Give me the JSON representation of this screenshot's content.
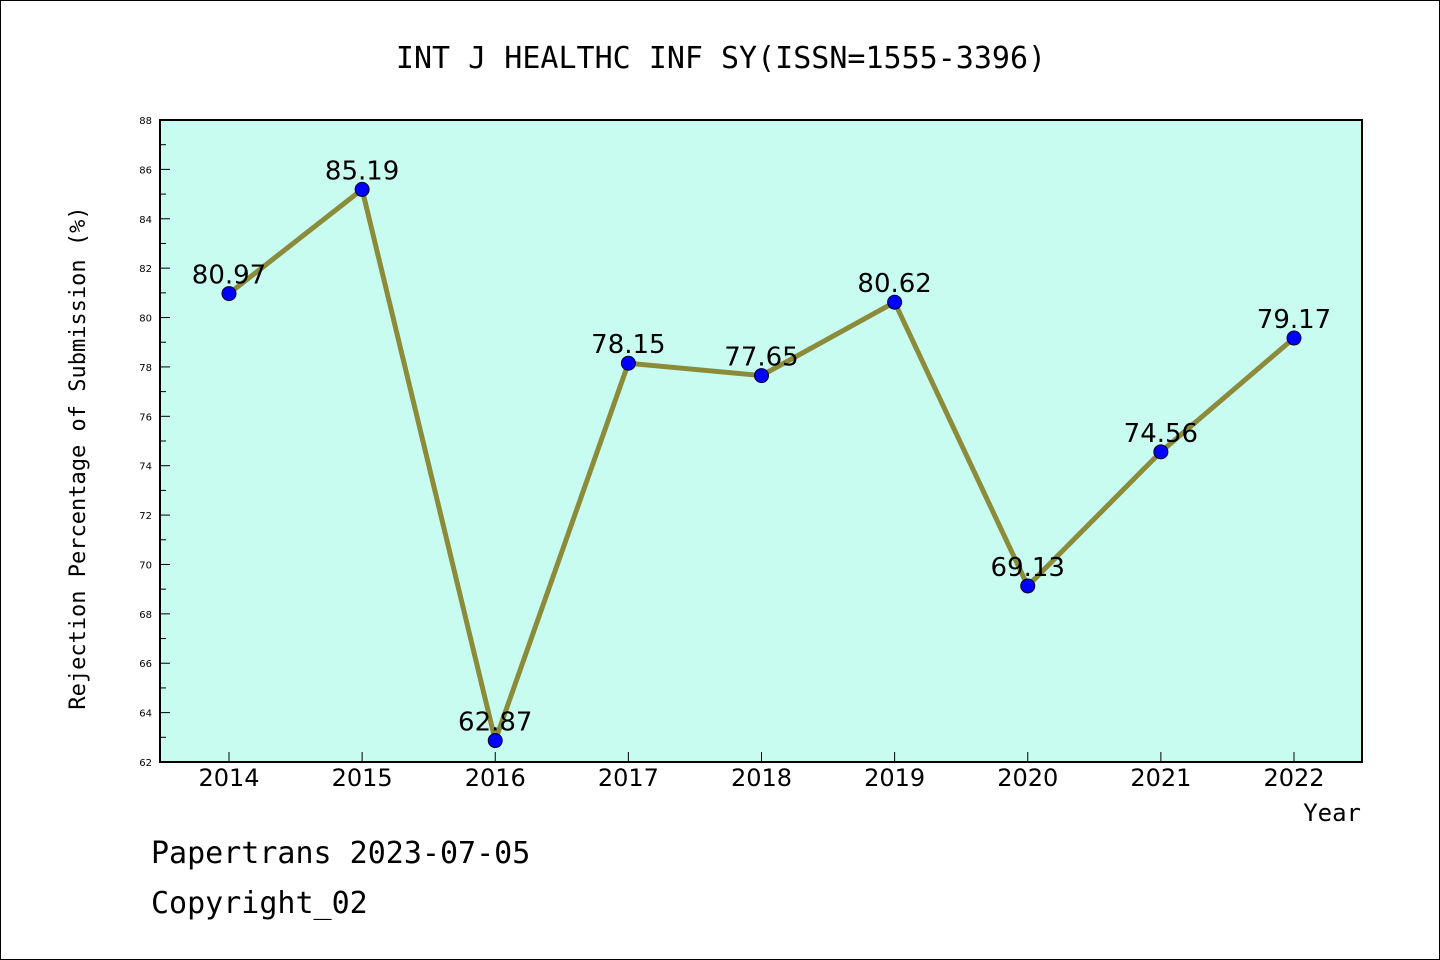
{
  "footer": {
    "line1": "Papertrans 2023-07-05",
    "line2": "Copyright_02"
  },
  "chart_data": {
    "type": "line",
    "title": "INT J HEALTHC INF SY(ISSN=1555-3396)",
    "xlabel": "Year",
    "ylabel": "Rejection Percentage of Submission (%)",
    "x": [
      "2014",
      "2015",
      "2016",
      "2017",
      "2018",
      "2019",
      "2020",
      "2021",
      "2022"
    ],
    "values": [
      80.97,
      85.19,
      62.87,
      78.15,
      77.65,
      80.62,
      69.13,
      74.56,
      79.17
    ],
    "data_labels": [
      "80.97",
      "85.19",
      "62.87",
      "78.15",
      "77.65",
      "80.62",
      "69.13",
      "74.56",
      "79.17"
    ],
    "ylim": [
      62,
      88
    ],
    "yticks": [
      62,
      64,
      66,
      68,
      70,
      72,
      74,
      76,
      78,
      80,
      82,
      84,
      86,
      88
    ],
    "grid": false,
    "colors": {
      "plot_background": "#c8fcf0",
      "line": "#8b8b3a",
      "marker": "#0000ff"
    }
  }
}
